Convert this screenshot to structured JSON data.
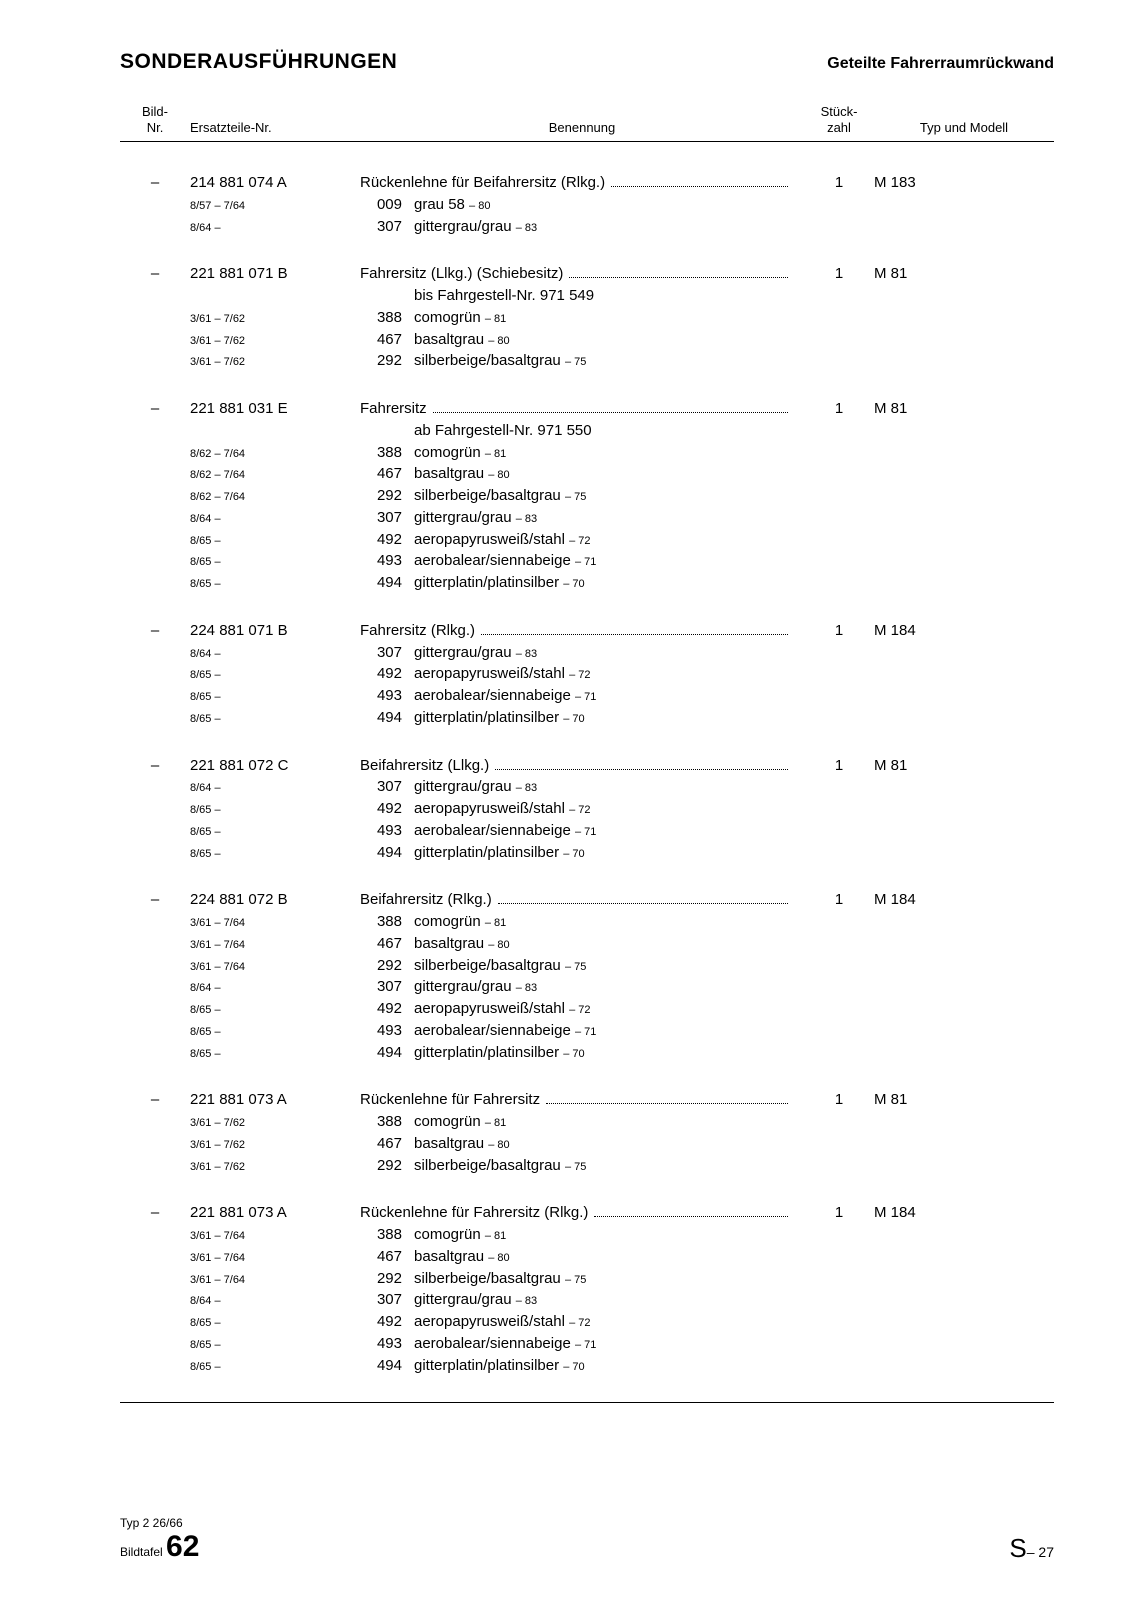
{
  "header": {
    "title": "SONDERAUSFÜHRUNGEN",
    "subtitle": "Geteilte Fahrerraumrückwand"
  },
  "columns": {
    "bild": "Bild-\nNr.",
    "ersatz": "Ersatzteile-Nr.",
    "benennung": "Benennung",
    "stk": "Stück-\nzahl",
    "typ": "Typ und Modell"
  },
  "groups": [
    {
      "bild": "–",
      "part": "214 881 074 A",
      "title": "Rückenlehne für Beifahrersitz (Rlkg.)",
      "qty": "1",
      "model": "M 183",
      "subtitle": "",
      "rows": [
        {
          "date": "8/57 – 7/64",
          "code": "009",
          "text": "grau 58",
          "suffix": "– 80"
        },
        {
          "date": "8/64 –",
          "code": "307",
          "text": "gittergrau/grau",
          "suffix": "– 83"
        }
      ]
    },
    {
      "bild": "–",
      "part": "221 881 071 B",
      "title": "Fahrersitz (Llkg.) (Schiebesitz)",
      "qty": "1",
      "model": "M 81",
      "subtitle": "bis Fahrgestell-Nr. 971 549",
      "rows": [
        {
          "date": "3/61 – 7/62",
          "code": "388",
          "text": "comogrün",
          "suffix": "– 81"
        },
        {
          "date": "3/61 – 7/62",
          "code": "467",
          "text": "basaltgrau",
          "suffix": "– 80"
        },
        {
          "date": "3/61 – 7/62",
          "code": "292",
          "text": "silberbeige/basaltgrau",
          "suffix": "– 75"
        }
      ]
    },
    {
      "bild": "–",
      "part": "221 881 031 E",
      "title": "Fahrersitz",
      "qty": "1",
      "model": "M 81",
      "subtitle": "ab Fahrgestell-Nr. 971 550",
      "rows": [
        {
          "date": "8/62 – 7/64",
          "code": "388",
          "text": "comogrün",
          "suffix": "– 81"
        },
        {
          "date": "8/62 – 7/64",
          "code": "467",
          "text": "basaltgrau",
          "suffix": "– 80"
        },
        {
          "date": "8/62 – 7/64",
          "code": "292",
          "text": "silberbeige/basaltgrau",
          "suffix": "– 75"
        },
        {
          "date": "8/64 –",
          "code": "307",
          "text": "gittergrau/grau",
          "suffix": "– 83"
        },
        {
          "date": "8/65 –",
          "code": "492",
          "text": "aeropapyrusweiß/stahl",
          "suffix": "– 72"
        },
        {
          "date": "8/65 –",
          "code": "493",
          "text": "aerobalear/siennabeige",
          "suffix": "– 71"
        },
        {
          "date": "8/65 –",
          "code": "494",
          "text": "gitterplatin/platinsilber",
          "suffix": "– 70"
        }
      ]
    },
    {
      "bild": "–",
      "part": "224 881 071 B",
      "title": "Fahrersitz (Rlkg.)",
      "qty": "1",
      "model": "M 184",
      "subtitle": "",
      "rows": [
        {
          "date": "8/64 –",
          "code": "307",
          "text": "gittergrau/grau",
          "suffix": "– 83"
        },
        {
          "date": "8/65 –",
          "code": "492",
          "text": "aeropapyrusweiß/stahl",
          "suffix": "– 72"
        },
        {
          "date": "8/65 –",
          "code": "493",
          "text": "aerobalear/siennabeige",
          "suffix": "– 71"
        },
        {
          "date": "8/65 –",
          "code": "494",
          "text": "gitterplatin/platinsilber",
          "suffix": "– 70"
        }
      ]
    },
    {
      "bild": "–",
      "part": "221 881 072 C",
      "title": "Beifahrersitz (Llkg.)",
      "qty": "1",
      "model": "M 81",
      "subtitle": "",
      "rows": [
        {
          "date": "8/64 –",
          "code": "307",
          "text": "gittergrau/grau",
          "suffix": "– 83"
        },
        {
          "date": "8/65 –",
          "code": "492",
          "text": "aeropapyrusweiß/stahl",
          "suffix": "– 72"
        },
        {
          "date": "8/65 –",
          "code": "493",
          "text": "aerobalear/siennabeige",
          "suffix": "– 71"
        },
        {
          "date": "8/65 –",
          "code": "494",
          "text": "gitterplatin/platinsilber",
          "suffix": "– 70"
        }
      ]
    },
    {
      "bild": "–",
      "part": "224 881 072 B",
      "title": "Beifahrersitz (Rlkg.)",
      "qty": "1",
      "model": "M 184",
      "subtitle": "",
      "rows": [
        {
          "date": "3/61 – 7/64",
          "code": "388",
          "text": "comogrün",
          "suffix": "– 81"
        },
        {
          "date": "3/61 – 7/64",
          "code": "467",
          "text": "basaltgrau",
          "suffix": "– 80"
        },
        {
          "date": "3/61 – 7/64",
          "code": "292",
          "text": "silberbeige/basaltgrau",
          "suffix": "– 75"
        },
        {
          "date": "8/64 –",
          "code": "307",
          "text": "gittergrau/grau",
          "suffix": "– 83"
        },
        {
          "date": "8/65 –",
          "code": "492",
          "text": "aeropapyrusweiß/stahl",
          "suffix": "– 72"
        },
        {
          "date": "8/65 –",
          "code": "493",
          "text": "aerobalear/siennabeige",
          "suffix": "– 71"
        },
        {
          "date": "8/65 –",
          "code": "494",
          "text": "gitterplatin/platinsilber",
          "suffix": "– 70"
        }
      ]
    },
    {
      "bild": "–",
      "part": "221 881 073 A",
      "title": "Rückenlehne für Fahrersitz",
      "qty": "1",
      "model": "M 81",
      "subtitle": "",
      "rows": [
        {
          "date": "3/61 – 7/62",
          "code": "388",
          "text": "comogrün",
          "suffix": "– 81"
        },
        {
          "date": "3/61 – 7/62",
          "code": "467",
          "text": "basaltgrau",
          "suffix": "– 80"
        },
        {
          "date": "3/61 – 7/62",
          "code": "292",
          "text": "silberbeige/basaltgrau",
          "suffix": "– 75"
        }
      ]
    },
    {
      "bild": "–",
      "part": "221 881 073 A",
      "title": "Rückenlehne für Fahrersitz (Rlkg.)",
      "qty": "1",
      "model": "M 184",
      "subtitle": "",
      "rows": [
        {
          "date": "3/61 – 7/64",
          "code": "388",
          "text": "comogrün",
          "suffix": "– 81"
        },
        {
          "date": "3/61 – 7/64",
          "code": "467",
          "text": "basaltgrau",
          "suffix": "– 80"
        },
        {
          "date": "3/61 – 7/64",
          "code": "292",
          "text": "silberbeige/basaltgrau",
          "suffix": "– 75"
        },
        {
          "date": "8/64 –",
          "code": "307",
          "text": "gittergrau/grau",
          "suffix": "– 83"
        },
        {
          "date": "8/65 –",
          "code": "492",
          "text": "aeropapyrusweiß/stahl",
          "suffix": "– 72"
        },
        {
          "date": "8/65 –",
          "code": "493",
          "text": "aerobalear/siennabeige",
          "suffix": "– 71"
        },
        {
          "date": "8/65 –",
          "code": "494",
          "text": "gitterplatin/platinsilber",
          "suffix": "– 70"
        }
      ]
    }
  ],
  "footer": {
    "line1": "Typ 2  26/66",
    "label": "Bildtafel",
    "number": "62",
    "right_big": "S",
    "right_sub": "– 27"
  }
}
